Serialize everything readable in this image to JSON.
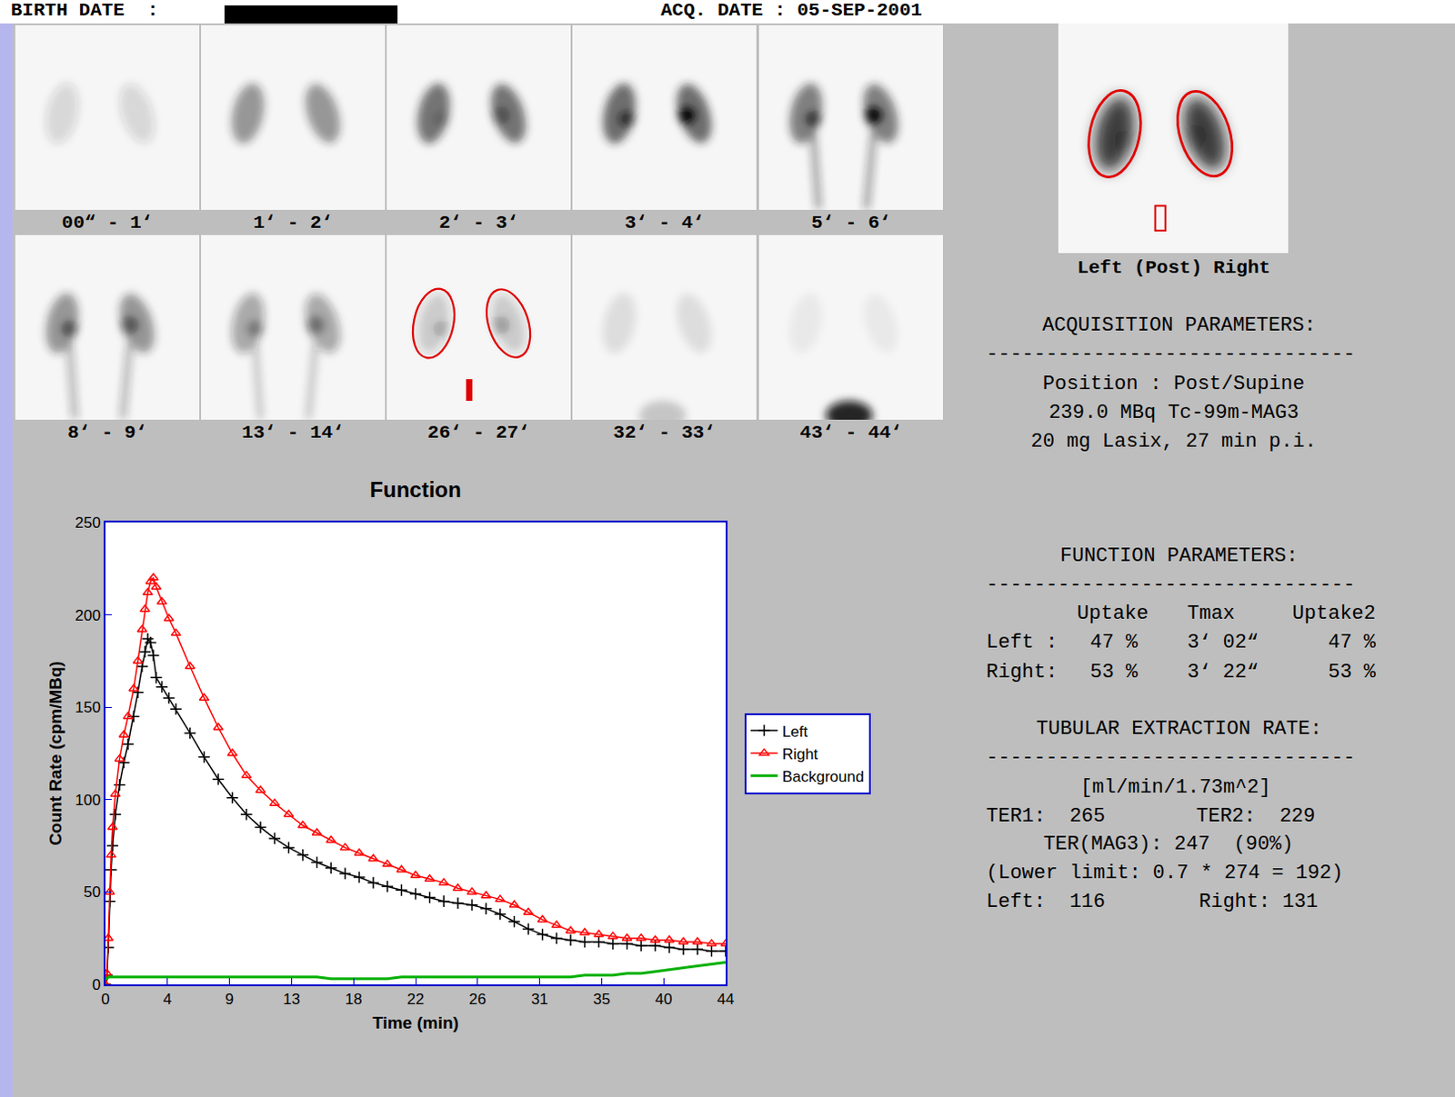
{
  "header": {
    "birth_date_label": "BIRTH DATE  :",
    "acq_date": "ACQ. DATE : 05-SEP-2001"
  },
  "frames": [
    "00“ - 1‘",
    "1‘ - 2‘",
    "2‘ - 3‘",
    "3‘ - 4‘",
    "5‘ - 6‘",
    "8‘ - 9‘",
    "13‘ - 14‘",
    "26‘ - 27‘",
    "32‘ - 33‘",
    "43‘ - 44‘"
  ],
  "summary_image_label": "Left (Post) Right",
  "separator": "-------------------------------",
  "acquisition": {
    "title": "ACQUISITION PARAMETERS:",
    "lines": [
      "Position : Post/Supine",
      "239.0 MBq Tc-99m-MAG3",
      "20 mg Lasix, 27 min p.i."
    ]
  },
  "function_parameters": {
    "title": "FUNCTION PARAMETERS:",
    "columns": [
      "Uptake",
      "Tmax",
      "Uptake2"
    ],
    "rows": [
      {
        "label": "Left :",
        "cells": [
          "47 %",
          "3‘ 02“",
          "47 %"
        ]
      },
      {
        "label": "Right:",
        "cells": [
          "53 %",
          "3‘ 22“",
          "53 %"
        ]
      }
    ]
  },
  "tubular_extraction": {
    "title": "TUBULAR EXTRACTION RATE:",
    "unit": "[ml/min/1.73m^2]",
    "ter1": "TER1:  265",
    "ter2": "TER2:  229",
    "ter_mag3": "TER(MAG3): 247  (90%)",
    "lower_limit": "(Lower limit: 0.7 * 274 = 192)",
    "left": "Left:  116",
    "right": "Right: 131"
  },
  "chart_data": {
    "type": "line",
    "title": "Function",
    "x_label": "Time (min)",
    "y_label": "Count Rate (cpm/MBq)",
    "x": [
      0,
      0.1,
      0.2,
      0.3,
      0.4,
      0.5,
      0.7,
      1,
      1.3,
      1.6,
      2,
      2.3,
      2.6,
      2.8,
      3,
      3.2,
      3.4,
      3.6,
      4,
      4.5,
      5,
      6,
      7,
      8,
      9,
      10,
      11,
      12,
      13,
      14,
      15,
      16,
      17,
      18,
      19,
      20,
      21,
      22,
      23,
      24,
      25,
      26,
      27,
      28,
      29,
      30,
      31,
      32,
      33,
      34,
      35,
      36,
      37,
      38,
      39,
      40,
      41,
      42,
      43,
      44
    ],
    "series": [
      {
        "name": "Left",
        "color": "#000000",
        "marker": "cross",
        "values": [
          0,
          5,
          20,
          45,
          62,
          75,
          92,
          108,
          120,
          130,
          145,
          158,
          172,
          180,
          187,
          185,
          178,
          166,
          161,
          155,
          149,
          136,
          123,
          111,
          101,
          92,
          85,
          79,
          74,
          70,
          66,
          63,
          60,
          58,
          55,
          53,
          51,
          49,
          47,
          45,
          44,
          43,
          41,
          38,
          34,
          30,
          27,
          25,
          24,
          23,
          23,
          22,
          22,
          21,
          21,
          20,
          19,
          19,
          18,
          18
        ]
      },
      {
        "name": "Right",
        "color": "#ff0000",
        "marker": "triangle-open",
        "values": [
          0,
          6,
          25,
          50,
          70,
          85,
          103,
          122,
          135,
          145,
          160,
          175,
          192,
          203,
          212,
          218,
          220,
          215,
          207,
          198,
          190,
          172,
          155,
          139,
          125,
          113,
          105,
          98,
          92,
          86,
          82,
          78,
          74,
          71,
          68,
          65,
          62,
          59,
          57,
          55,
          52,
          50,
          48,
          46,
          43,
          39,
          35,
          32,
          29,
          28,
          27,
          26,
          25,
          25,
          24,
          24,
          23,
          23,
          22,
          22
        ]
      },
      {
        "name": "Background",
        "color": "#00b000",
        "marker": "none",
        "values": [
          3,
          3,
          4,
          4,
          4,
          4,
          4,
          4,
          4,
          4,
          4,
          4,
          4,
          4,
          4,
          4,
          4,
          4,
          4,
          4,
          4,
          4,
          4,
          4,
          4,
          4,
          4,
          4,
          4,
          4,
          4,
          3,
          3,
          3,
          3,
          3,
          4,
          4,
          4,
          4,
          4,
          4,
          4,
          4,
          4,
          4,
          4,
          4,
          4,
          5,
          5,
          5,
          6,
          6,
          7,
          8,
          9,
          10,
          11,
          12
        ]
      }
    ],
    "xlim": [
      0,
      44
    ],
    "xticks": [
      0,
      {
        "value": 4.4,
        "label": "4"
      },
      {
        "value": 8.8,
        "label": "9"
      },
      {
        "value": 13.2,
        "label": "13"
      },
      {
        "value": 17.6,
        "label": "18"
      },
      22,
      {
        "value": 26.4,
        "label": "26"
      },
      {
        "value": 30.8,
        "label": "31"
      },
      {
        "value": 35.2,
        "label": "35"
      },
      {
        "value": 39.6,
        "label": "40"
      },
      44
    ],
    "ylim": [
      0,
      250
    ],
    "yticks": [
      0,
      50,
      100,
      150,
      200,
      250
    ],
    "grid": false,
    "legend": "right"
  }
}
